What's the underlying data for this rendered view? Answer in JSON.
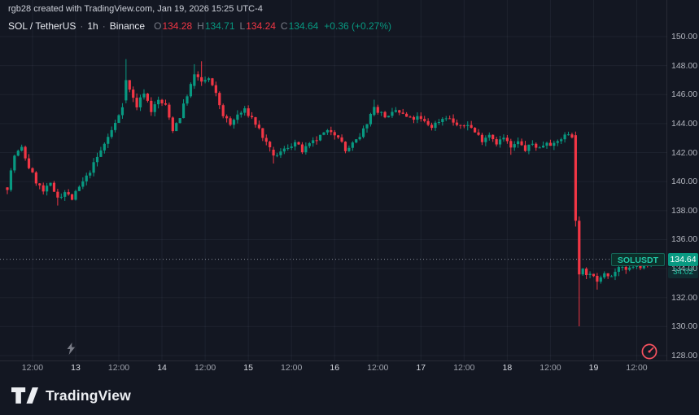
{
  "header": {
    "attribution": "rgb28 created with TradingView.com, Jan 19, 2026 15:25 UTC-4",
    "symbol_line": {
      "symbol": "SOL / TetherUS",
      "interval": "1h",
      "exchange": "Binance",
      "separator": "·",
      "ohlc": [
        {
          "key": "O",
          "value": "134.28",
          "color": "#f23645"
        },
        {
          "key": "H",
          "value": "134.71",
          "color": "#089981"
        },
        {
          "key": "L",
          "value": "134.24",
          "color": "#f23645"
        },
        {
          "key": "C",
          "value": "134.64",
          "color": "#089981"
        }
      ],
      "change": "+0.36 (+0.27%)",
      "change_color": "#089981"
    }
  },
  "price_label": {
    "symbol_tag": "SOLUSDT",
    "price": "134.64",
    "countdown": "34:02"
  },
  "footer": {
    "brand": "TradingView"
  },
  "colors": {
    "background": "#131722",
    "up": "#089981",
    "down": "#f23645",
    "grid": "rgba(174,186,214,0.07)",
    "axis_line": "rgba(255,255,255,0.09)",
    "price_line": "#8a8f9a",
    "badge": "#089981"
  },
  "chart_data": {
    "type": "candlestick",
    "title": "SOL / TetherUS · 1h · Binance",
    "symbol": "SOLUSDT",
    "exchange": "Binance",
    "interval": "1h",
    "legend": "single series, hourly candles, Jan 12 - Jan 19",
    "ylim": [
      128,
      150
    ],
    "grid": true,
    "y_ticks": [
      "150.00",
      "148.00",
      "146.00",
      "144.00",
      "142.00",
      "140.00",
      "138.00",
      "136.00",
      "134.00",
      "132.00",
      "130.00",
      "128.00"
    ],
    "x_ticks": [
      {
        "h": 7,
        "label": "12:00",
        "major": false
      },
      {
        "h": 19,
        "label": "13",
        "major": true
      },
      {
        "h": 31,
        "label": "12:00",
        "major": false
      },
      {
        "h": 43,
        "label": "14",
        "major": true
      },
      {
        "h": 55,
        "label": "12:00",
        "major": false
      },
      {
        "h": 67,
        "label": "15",
        "major": true
      },
      {
        "h": 79,
        "label": "12:00",
        "major": false
      },
      {
        "h": 91,
        "label": "16",
        "major": true
      },
      {
        "h": 103,
        "label": "12:00",
        "major": false
      },
      {
        "h": 115,
        "label": "17",
        "major": true
      },
      {
        "h": 127,
        "label": "12:00",
        "major": false
      },
      {
        "h": 139,
        "label": "18",
        "major": true
      },
      {
        "h": 151,
        "label": "12:00",
        "major": false
      },
      {
        "h": 163,
        "label": "19",
        "major": true
      },
      {
        "h": 175,
        "label": "12:00",
        "major": false
      }
    ],
    "last_bar": {
      "open": 134.28,
      "high": 134.71,
      "low": 134.24,
      "close": 134.64,
      "change": 0.36,
      "change_pct": 0.27
    },
    "last_price": 134.64,
    "candle_count": 181,
    "anchors": [
      [
        0,
        139.6
      ],
      [
        2,
        141.8
      ],
      [
        4,
        142.3
      ],
      [
        6,
        141.0
      ],
      [
        8,
        140.0
      ],
      [
        10,
        139.3
      ],
      [
        12,
        139.8
      ],
      [
        14,
        138.9
      ],
      [
        16,
        139.3
      ],
      [
        18,
        138.8
      ],
      [
        20,
        139.6
      ],
      [
        22,
        140.3
      ],
      [
        24,
        141.2
      ],
      [
        27,
        142.6
      ],
      [
        30,
        144.0
      ],
      [
        32,
        145.3
      ],
      [
        33,
        147.0
      ],
      [
        34,
        146.3
      ],
      [
        36,
        145.2
      ],
      [
        38,
        146.2
      ],
      [
        40,
        144.9
      ],
      [
        42,
        145.6
      ],
      [
        44,
        145.2
      ],
      [
        46,
        143.6
      ],
      [
        48,
        144.5
      ],
      [
        50,
        146.0
      ],
      [
        52,
        147.3
      ],
      [
        54,
        146.9
      ],
      [
        56,
        147.1
      ],
      [
        58,
        146.0
      ],
      [
        60,
        144.6
      ],
      [
        62,
        143.9
      ],
      [
        64,
        144.6
      ],
      [
        66,
        144.9
      ],
      [
        68,
        144.4
      ],
      [
        70,
        143.6
      ],
      [
        72,
        142.6
      ],
      [
        74,
        141.8
      ],
      [
        76,
        142.0
      ],
      [
        78,
        142.4
      ],
      [
        80,
        142.7
      ],
      [
        82,
        142.1
      ],
      [
        84,
        142.5
      ],
      [
        86,
        142.9
      ],
      [
        88,
        143.3
      ],
      [
        90,
        143.5
      ],
      [
        92,
        143.2
      ],
      [
        94,
        142.1
      ],
      [
        96,
        142.6
      ],
      [
        98,
        143.0
      ],
      [
        100,
        144.1
      ],
      [
        102,
        145.1
      ],
      [
        104,
        144.7
      ],
      [
        106,
        144.4
      ],
      [
        108,
        144.9
      ],
      [
        110,
        144.6
      ],
      [
        112,
        144.3
      ],
      [
        114,
        144.4
      ],
      [
        116,
        144.1
      ],
      [
        118,
        143.8
      ],
      [
        120,
        144.2
      ],
      [
        122,
        144.5
      ],
      [
        124,
        144.1
      ],
      [
        126,
        143.7
      ],
      [
        128,
        144.0
      ],
      [
        130,
        143.4
      ],
      [
        132,
        142.9
      ],
      [
        134,
        143.3
      ],
      [
        136,
        142.7
      ],
      [
        138,
        143.0
      ],
      [
        140,
        142.4
      ],
      [
        142,
        142.7
      ],
      [
        144,
        142.2
      ],
      [
        146,
        142.6
      ],
      [
        148,
        142.3
      ],
      [
        150,
        142.8
      ],
      [
        152,
        142.5
      ],
      [
        154,
        143.0
      ],
      [
        156,
        143.3
      ],
      [
        157,
        143.2
      ],
      [
        160,
        133.9
      ],
      [
        162,
        133.5
      ],
      [
        164,
        133.2
      ],
      [
        166,
        133.8
      ],
      [
        168,
        133.5
      ],
      [
        170,
        134.1
      ],
      [
        172,
        133.8
      ],
      [
        174,
        134.2
      ],
      [
        176,
        134.0
      ],
      [
        178,
        134.4
      ],
      [
        180,
        134.5
      ]
    ],
    "overrides": {
      "14": [
        139.3,
        139.5,
        138.35,
        138.9
      ],
      "33": [
        145.6,
        148.45,
        145.4,
        147.0
      ],
      "52": [
        146.6,
        148.1,
        146.4,
        147.4
      ],
      "54": [
        147.2,
        148.3,
        146.6,
        146.9
      ],
      "74": [
        142.2,
        142.4,
        141.25,
        141.8
      ],
      "102": [
        144.6,
        145.65,
        144.5,
        145.15
      ],
      "140": [
        142.8,
        142.95,
        141.85,
        142.35
      ],
      "158": [
        143.2,
        143.45,
        136.9,
        137.3
      ],
      "159": [
        137.3,
        137.6,
        130.02,
        133.6
      ],
      "164": [
        133.5,
        133.7,
        132.55,
        133.1
      ],
      "180": [
        134.28,
        134.71,
        134.24,
        134.64
      ]
    },
    "noise": {
      "seed": 7,
      "body": 0.18,
      "wick": 0.3
    }
  }
}
